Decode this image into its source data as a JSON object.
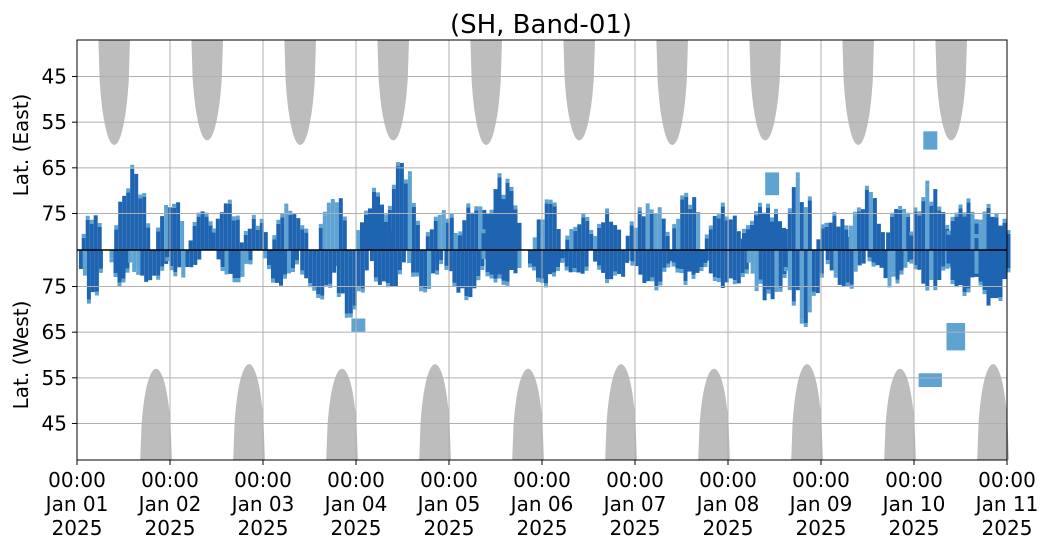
{
  "chart_data": {
    "type": "heatmap",
    "title": "(SH, Band-01)",
    "ylabel_east": "Lat. (East)",
    "ylabel_west": "Lat. (West)",
    "x_ticks": [
      {
        "time": "00:00",
        "date": "Jan 01",
        "year": "2025"
      },
      {
        "time": "00:00",
        "date": "Jan 02",
        "year": "2025"
      },
      {
        "time": "00:00",
        "date": "Jan 03",
        "year": "2025"
      },
      {
        "time": "00:00",
        "date": "Jan 04",
        "year": "2025"
      },
      {
        "time": "00:00",
        "date": "Jan 05",
        "year": "2025"
      },
      {
        "time": "00:00",
        "date": "Jan 06",
        "year": "2025"
      },
      {
        "time": "00:00",
        "date": "Jan 07",
        "year": "2025"
      },
      {
        "time": "00:00",
        "date": "Jan 08",
        "year": "2025"
      },
      {
        "time": "00:00",
        "date": "Jan 09",
        "year": "2025"
      },
      {
        "time": "00:00",
        "date": "Jan 10",
        "year": "2025"
      },
      {
        "time": "00:00",
        "date": "Jan 11",
        "year": "2025"
      }
    ],
    "x_range_days": [
      0,
      10
    ],
    "east_ticks": [
      "45",
      "55",
      "65",
      "75"
    ],
    "west_ticks": [
      "75",
      "65",
      "55",
      "45"
    ],
    "lat_range": [
      37,
      83
    ],
    "grid": true,
    "colors": {
      "dark": "#1f64b0",
      "light": "#5fa3d2",
      "gray": "#bdbdbd",
      "grid": "#b0b0b0",
      "divider": "#000000"
    },
    "east_gray_lobes": [
      {
        "center_day": 0.4,
        "half_width_days": 0.17,
        "min_lat": 60
      },
      {
        "center_day": 1.4,
        "half_width_days": 0.17,
        "min_lat": 59
      },
      {
        "center_day": 2.4,
        "half_width_days": 0.17,
        "min_lat": 60
      },
      {
        "center_day": 3.4,
        "half_width_days": 0.17,
        "min_lat": 59
      },
      {
        "center_day": 4.4,
        "half_width_days": 0.17,
        "min_lat": 60
      },
      {
        "center_day": 5.4,
        "half_width_days": 0.17,
        "min_lat": 59
      },
      {
        "center_day": 6.4,
        "half_width_days": 0.17,
        "min_lat": 60
      },
      {
        "center_day": 7.4,
        "half_width_days": 0.17,
        "min_lat": 59
      },
      {
        "center_day": 8.4,
        "half_width_days": 0.17,
        "min_lat": 60
      },
      {
        "center_day": 9.4,
        "half_width_days": 0.17,
        "min_lat": 59
      }
    ],
    "west_gray_lobes": [
      {
        "center_day": 0.85,
        "half_width_days": 0.17,
        "min_lat": 57
      },
      {
        "center_day": 1.85,
        "half_width_days": 0.17,
        "min_lat": 58
      },
      {
        "center_day": 2.85,
        "half_width_days": 0.17,
        "min_lat": 57
      },
      {
        "center_day": 3.85,
        "half_width_days": 0.17,
        "min_lat": 58
      },
      {
        "center_day": 4.85,
        "half_width_days": 0.17,
        "min_lat": 57
      },
      {
        "center_day": 5.85,
        "half_width_days": 0.17,
        "min_lat": 58
      },
      {
        "center_day": 6.85,
        "half_width_days": 0.17,
        "min_lat": 57
      },
      {
        "center_day": 7.85,
        "half_width_days": 0.17,
        "min_lat": 58
      },
      {
        "center_day": 8.85,
        "half_width_days": 0.17,
        "min_lat": 57
      },
      {
        "center_day": 9.85,
        "half_width_days": 0.17,
        "min_lat": 58
      }
    ],
    "east_blobs": [
      {
        "start": 0.05,
        "end": 0.25,
        "min_lat": 76
      },
      {
        "start": 0.4,
        "end": 0.75,
        "min_lat": 68
      },
      {
        "start": 0.85,
        "end": 1.15,
        "min_lat": 73
      },
      {
        "start": 1.2,
        "end": 1.45,
        "min_lat": 75
      },
      {
        "start": 1.45,
        "end": 1.75,
        "min_lat": 74
      },
      {
        "start": 1.75,
        "end": 2.05,
        "min_lat": 77
      },
      {
        "start": 2.1,
        "end": 2.45,
        "min_lat": 74
      },
      {
        "start": 2.6,
        "end": 2.9,
        "min_lat": 71
      },
      {
        "start": 3.0,
        "end": 3.35,
        "min_lat": 72
      },
      {
        "start": 3.3,
        "end": 3.65,
        "min_lat": 67
      },
      {
        "start": 3.75,
        "end": 4.1,
        "min_lat": 76
      },
      {
        "start": 4.1,
        "end": 4.45,
        "min_lat": 73
      },
      {
        "start": 4.35,
        "end": 4.75,
        "min_lat": 70
      },
      {
        "start": 4.9,
        "end": 5.2,
        "min_lat": 74
      },
      {
        "start": 5.25,
        "end": 5.55,
        "min_lat": 77
      },
      {
        "start": 5.55,
        "end": 5.85,
        "min_lat": 75
      },
      {
        "start": 5.9,
        "end": 6.35,
        "min_lat": 74
      },
      {
        "start": 6.4,
        "end": 6.7,
        "min_lat": 71
      },
      {
        "start": 6.75,
        "end": 7.15,
        "min_lat": 75
      },
      {
        "start": 7.15,
        "end": 7.6,
        "min_lat": 74
      },
      {
        "start": 7.6,
        "end": 7.9,
        "min_lat": 69
      },
      {
        "start": 7.95,
        "end": 8.3,
        "min_lat": 76
      },
      {
        "start": 8.3,
        "end": 8.65,
        "min_lat": 72
      },
      {
        "start": 8.7,
        "end": 8.95,
        "min_lat": 73
      },
      {
        "start": 8.95,
        "end": 9.35,
        "min_lat": 71
      },
      {
        "start": 9.35,
        "end": 9.7,
        "min_lat": 74
      },
      {
        "start": 9.65,
        "end": 10.0,
        "min_lat": 75
      }
    ],
    "west_blobs": [
      {
        "start": 0.02,
        "end": 0.25,
        "min_lat": 73
      },
      {
        "start": 0.35,
        "end": 0.55,
        "min_lat": 77
      },
      {
        "start": 0.55,
        "end": 0.95,
        "min_lat": 76
      },
      {
        "start": 0.95,
        "end": 1.3,
        "min_lat": 78
      },
      {
        "start": 1.5,
        "end": 1.85,
        "min_lat": 77
      },
      {
        "start": 2.0,
        "end": 2.35,
        "min_lat": 76
      },
      {
        "start": 2.4,
        "end": 2.75,
        "min_lat": 72
      },
      {
        "start": 2.75,
        "end": 3.1,
        "min_lat": 70
      },
      {
        "start": 3.15,
        "end": 3.5,
        "min_lat": 74
      },
      {
        "start": 3.55,
        "end": 3.9,
        "min_lat": 76
      },
      {
        "start": 3.95,
        "end": 4.35,
        "min_lat": 74
      },
      {
        "start": 4.35,
        "end": 4.75,
        "min_lat": 76
      },
      {
        "start": 4.85,
        "end": 5.2,
        "min_lat": 76
      },
      {
        "start": 5.2,
        "end": 5.5,
        "min_lat": 78
      },
      {
        "start": 5.55,
        "end": 5.95,
        "min_lat": 77
      },
      {
        "start": 5.95,
        "end": 6.35,
        "min_lat": 76
      },
      {
        "start": 6.35,
        "end": 6.75,
        "min_lat": 77
      },
      {
        "start": 6.75,
        "end": 7.2,
        "min_lat": 75
      },
      {
        "start": 7.2,
        "end": 7.65,
        "min_lat": 73
      },
      {
        "start": 7.6,
        "end": 8.0,
        "min_lat": 70
      },
      {
        "start": 8.05,
        "end": 8.45,
        "min_lat": 76
      },
      {
        "start": 8.5,
        "end": 8.95,
        "min_lat": 77
      },
      {
        "start": 8.95,
        "end": 9.35,
        "min_lat": 76
      },
      {
        "start": 9.35,
        "end": 9.7,
        "min_lat": 74
      },
      {
        "start": 9.65,
        "end": 10.0,
        "min_lat": 70
      }
    ],
    "west_patches": [
      {
        "start": 9.05,
        "end": 9.3,
        "lat_low": 53,
        "lat_high": 56
      },
      {
        "start": 9.35,
        "end": 9.55,
        "lat_low": 61,
        "lat_high": 67
      },
      {
        "start": 2.95,
        "end": 3.1,
        "lat_low": 65,
        "lat_high": 68
      }
    ],
    "east_patches": [
      {
        "start": 9.1,
        "end": 9.25,
        "lat_low": 57,
        "lat_high": 61
      },
      {
        "start": 7.4,
        "end": 7.55,
        "lat_low": 66,
        "lat_high": 71
      }
    ]
  }
}
